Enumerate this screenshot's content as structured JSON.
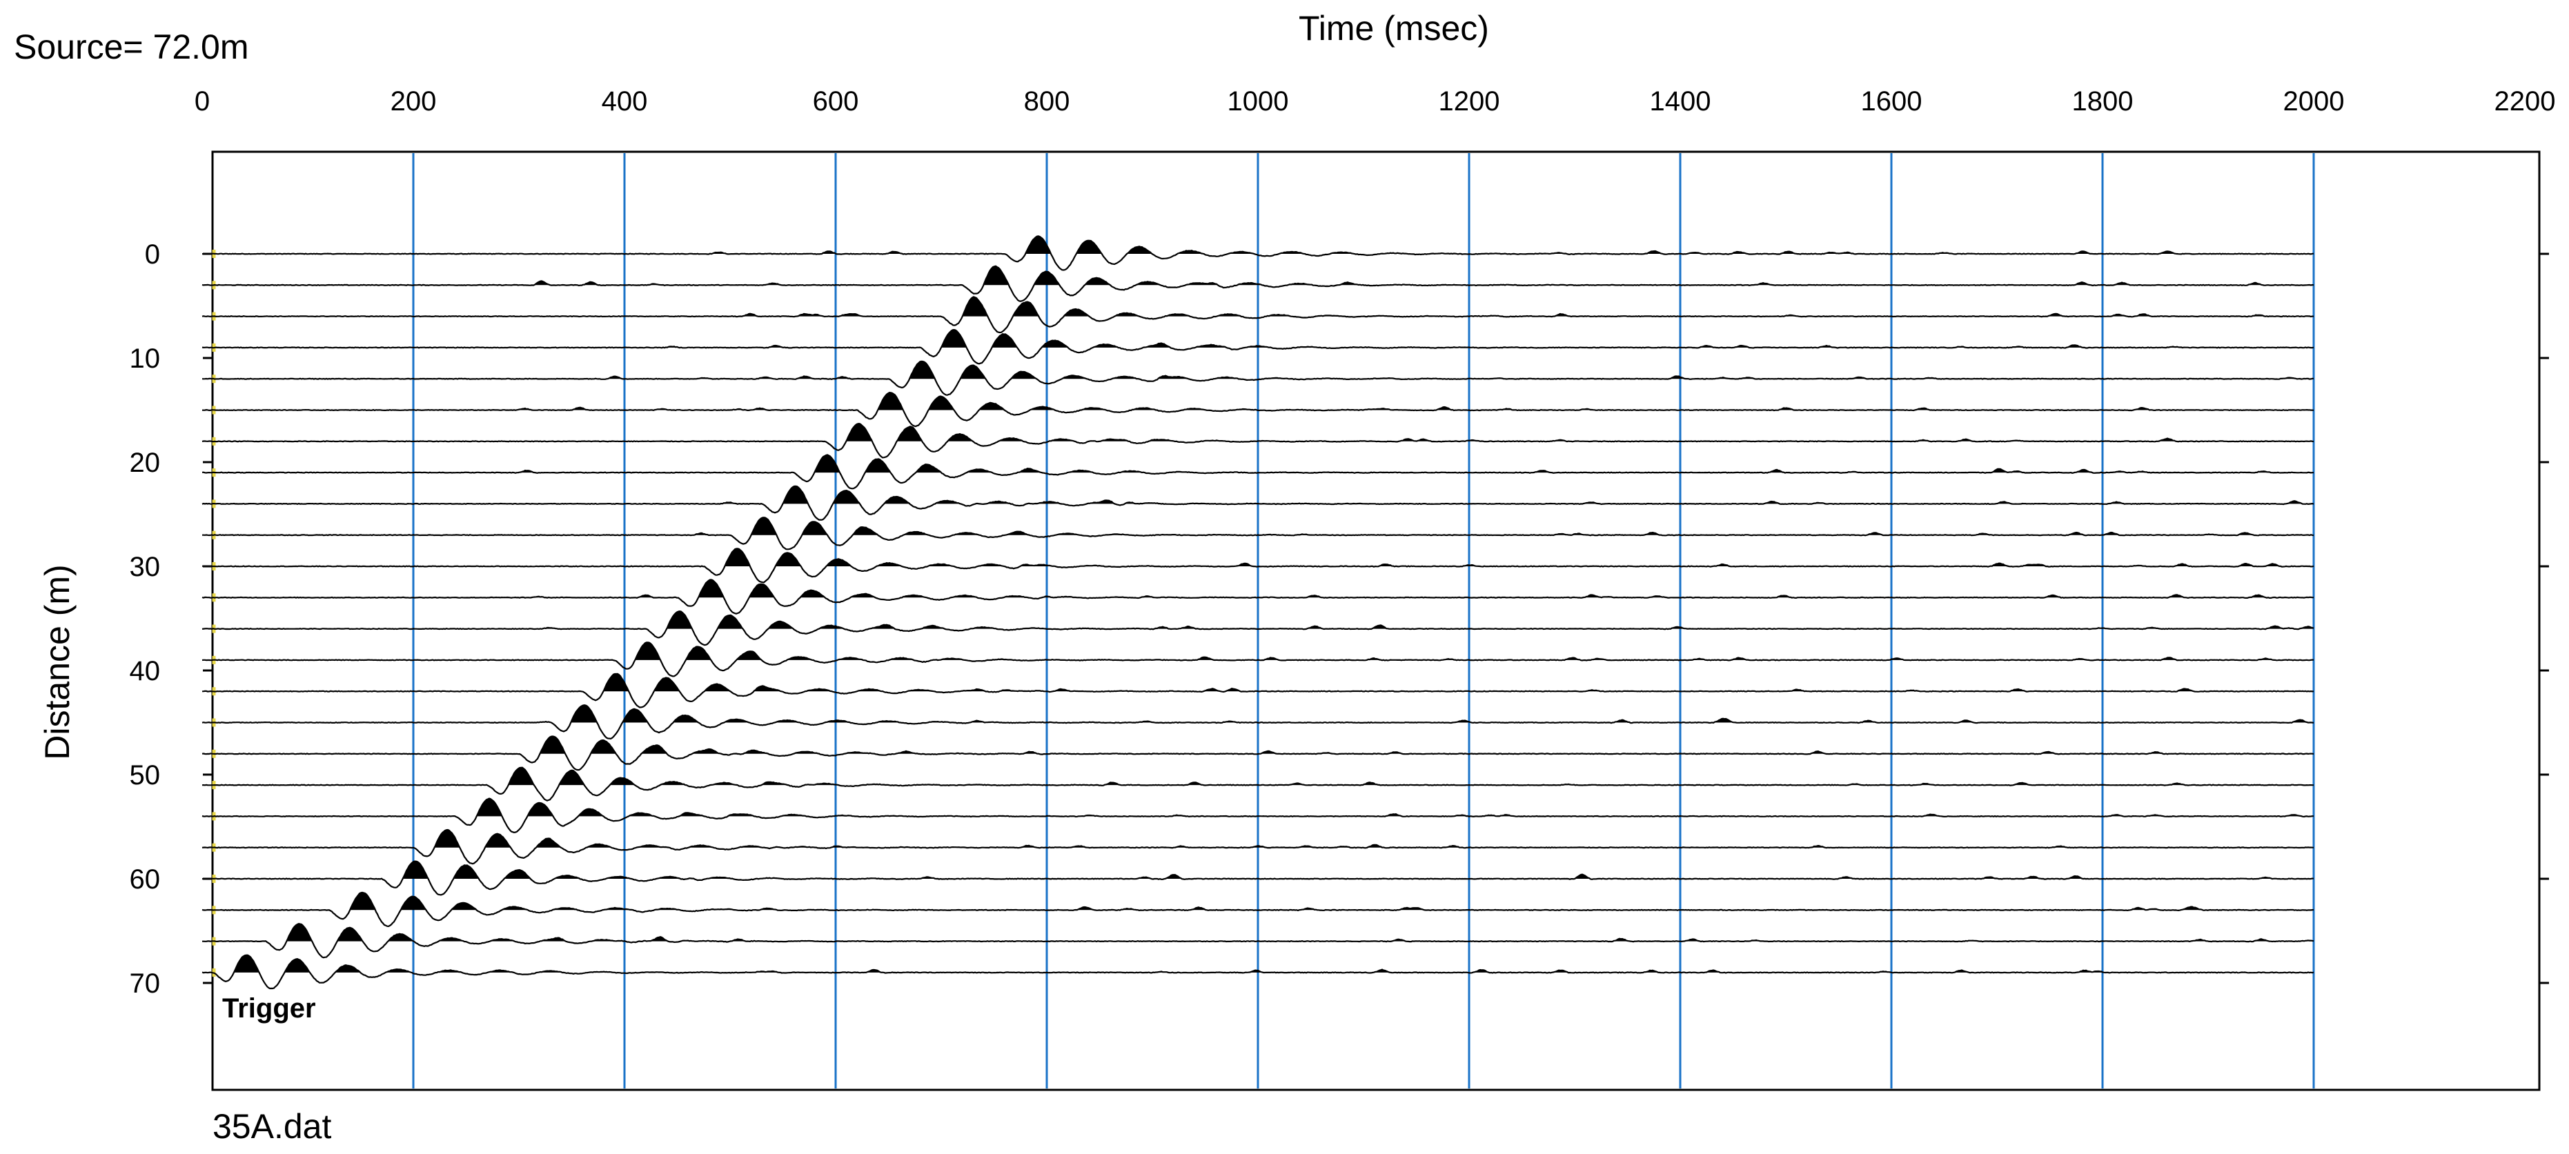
{
  "header": {
    "source_label": "Source= 72.0m"
  },
  "footer": {
    "file_name": "35A.dat"
  },
  "colors": {
    "grid": "#1a73c8",
    "trace": "#000000",
    "frame": "#000000",
    "trigger_marker": "#e8d84a"
  },
  "chart_data": {
    "type": "line",
    "title": "Time (msec)",
    "xlabel": "Time (msec)",
    "ylabel": "Distance (m)",
    "xlim": [
      0,
      2200
    ],
    "ylim": [
      80,
      -10
    ],
    "x_ticks": [
      0,
      200,
      400,
      600,
      800,
      1000,
      1200,
      1400,
      1600,
      1800,
      2000,
      2200
    ],
    "y_ticks": [
      0,
      10,
      20,
      30,
      40,
      50,
      60,
      70
    ],
    "grid": "vertical",
    "record_length_msec": 2000,
    "traces": {
      "count": 24,
      "first_offset_m": 0,
      "spacing_m": 3,
      "fill": "positive-black",
      "first_arrivals_msec": [
        780,
        740,
        720,
        700,
        670,
        640,
        610,
        580,
        550,
        520,
        495,
        470,
        440,
        410,
        380,
        350,
        320,
        290,
        260,
        220,
        190,
        140,
        80,
        30
      ]
    },
    "annotations": [
      {
        "text": "Trigger",
        "x": 0,
        "y": 70
      }
    ]
  }
}
